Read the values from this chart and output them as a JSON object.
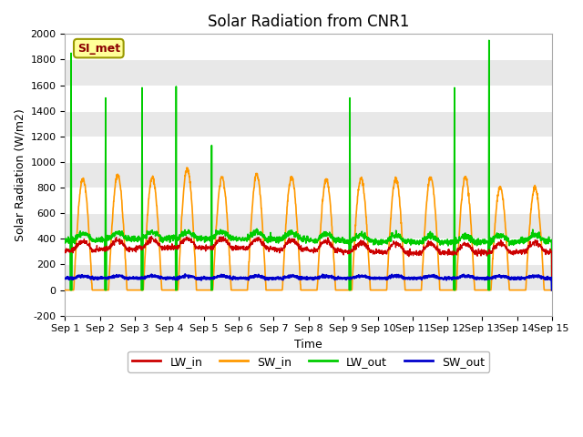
{
  "title": "Solar Radiation from CNR1",
  "xlabel": "Time",
  "ylabel": "Solar Radiation (W/m2)",
  "ylim": [
    -200,
    2000
  ],
  "xlim": [
    0,
    14
  ],
  "xtick_positions": [
    0,
    1,
    2,
    3,
    4,
    5,
    6,
    7,
    8,
    9,
    10,
    11,
    12,
    13,
    14
  ],
  "xtick_labels": [
    "Sep 1",
    "Sep 2",
    "Sep 3",
    "Sep 4",
    "Sep 5",
    "Sep 6",
    "Sep 7",
    "Sep 8",
    "Sep 9",
    "Sep 10",
    "Sep 11",
    "Sep 12",
    "Sep 13",
    "Sep 14",
    "Sep 15"
  ],
  "ytick_positions": [
    -200,
    0,
    200,
    400,
    600,
    800,
    1000,
    1200,
    1400,
    1600,
    1800,
    2000
  ],
  "colors": {
    "LW_in": "#cc0000",
    "SW_in": "#ff9900",
    "LW_out": "#00cc00",
    "SW_out": "#0000cc"
  },
  "line_widths": {
    "LW_in": 1.0,
    "SW_in": 1.2,
    "LW_out": 1.2,
    "SW_out": 1.5
  },
  "legend_label": "SI_met",
  "background_color": "#ffffff",
  "plot_bg_color": "#ffffff",
  "band_colors": [
    "#ffffff",
    "#e8e8e8"
  ],
  "title_fontsize": 12,
  "axis_fontsize": 9,
  "tick_fontsize": 8
}
